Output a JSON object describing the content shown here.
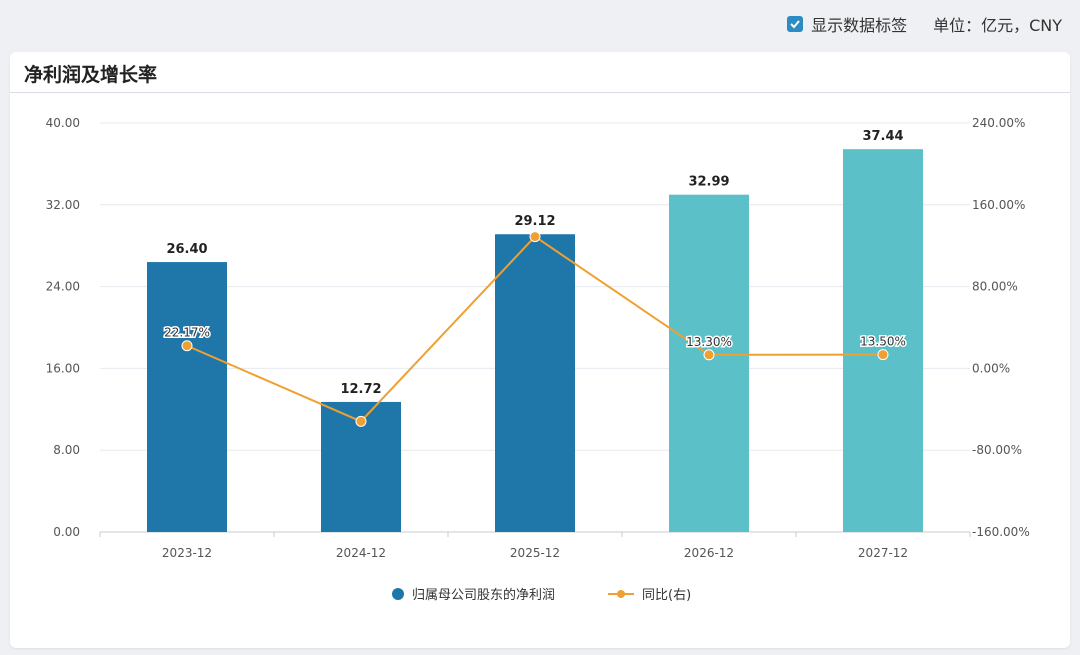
{
  "toolbar": {
    "show_labels": "显示数据标签",
    "unit": "单位：亿元，CNY"
  },
  "card": {
    "title": "净利润及增长率"
  },
  "colors": {
    "bar_actual": "#1f77a9",
    "bar_forecast": "#5bc0c8",
    "line": "#f0a030",
    "grid": "#e6e9ee",
    "checkbox": "#2b8cc4"
  },
  "chart_data": {
    "type": "bar",
    "categories": [
      "2023-12",
      "2024-12",
      "2025-12",
      "2026-12",
      "2027-12"
    ],
    "y_left": {
      "ticks": [
        "0.00",
        "8.00",
        "16.00",
        "24.00",
        "32.00",
        "40.00"
      ],
      "min": 0,
      "max": 40
    },
    "y_right": {
      "ticks": [
        "-160.00%",
        "-80.00%",
        "0.00%",
        "80.00%",
        "160.00%",
        "240.00%"
      ],
      "min": -160,
      "max": 240
    },
    "series": [
      {
        "name": "归属母公司股东的净利润",
        "type": "bar",
        "values": [
          26.4,
          12.72,
          29.12,
          32.99,
          37.44
        ],
        "labels": [
          "26.40",
          "12.72",
          "29.12",
          "32.99",
          "37.44"
        ],
        "forecast": [
          false,
          false,
          false,
          true,
          true
        ]
      },
      {
        "name": "同比(右)",
        "type": "line",
        "axis": "right",
        "values": [
          22.17,
          -51.8,
          128.9,
          13.3,
          13.5
        ],
        "labels": [
          "22.17%",
          "",
          "",
          "13.30%",
          "13.50%"
        ]
      }
    ],
    "grid": true,
    "legend_position": "bottom-center"
  }
}
